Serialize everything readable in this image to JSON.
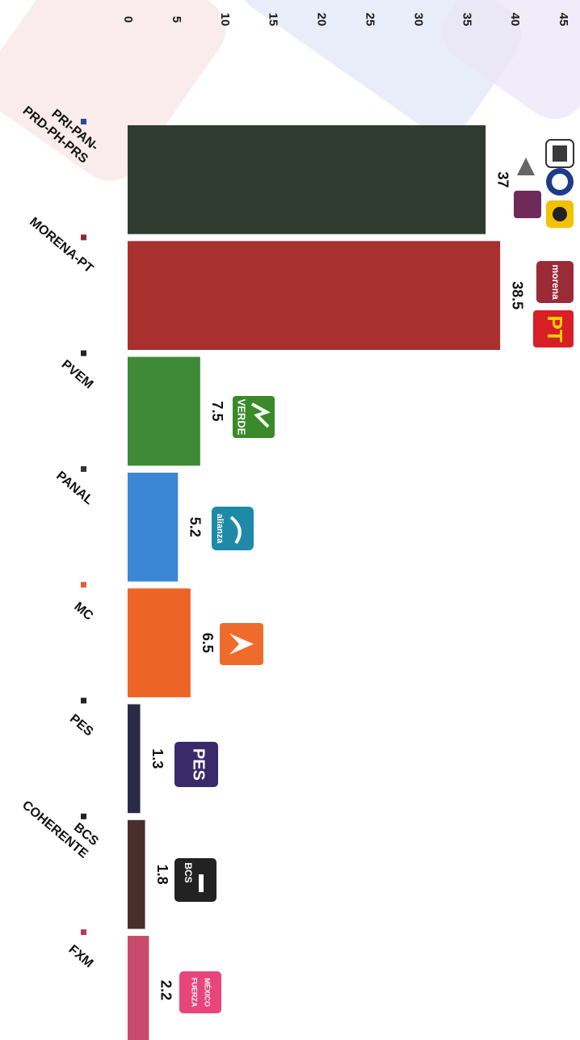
{
  "chart_data": {
    "type": "bar",
    "orientation": "horizontal",
    "categories": [
      "PRI-PAN-PRD-PH-PRS",
      "MORENA-PT",
      "PVEM",
      "PANAL",
      "MC",
      "PES",
      "BCS COHERENTE",
      "FXM"
    ],
    "category_lines": [
      [
        "PRI-PAN-",
        "PRD-PH-PRS"
      ],
      [
        "MORENA-PT"
      ],
      [
        "PVEM"
      ],
      [
        "PANAL"
      ],
      [
        "MC"
      ],
      [
        "PES"
      ],
      [
        "BCS",
        "COHERENTE"
      ],
      [
        "FXM"
      ]
    ],
    "values": [
      37,
      38.5,
      7.5,
      5.2,
      6.5,
      1.3,
      1.8,
      2.2
    ],
    "value_labels": [
      "37",
      "38.5",
      "7.5",
      "5.2",
      "6.5",
      "1.3",
      "1.8",
      "2.2"
    ],
    "colors": [
      "#2f3b2f",
      "#a8302f",
      "#3e8a36",
      "#3c86d6",
      "#ec6426",
      "#2a2a48",
      "#4a2e2c",
      "#c94a6c"
    ],
    "marker_colors": [
      "#2b4a9a",
      "#8a2a35",
      "#222222",
      "#333333",
      "#e0603a",
      "#222222",
      "#222222",
      "#b23a5a"
    ],
    "axis_ticks": [
      "0",
      "5",
      "10",
      "15",
      "20",
      "25",
      "30",
      "35",
      "40",
      "45"
    ],
    "xlim": [
      0,
      45
    ],
    "title": "",
    "xlabel": "",
    "ylabel": "",
    "grid": false,
    "legend": "none",
    "rotated": "chart drawn rotated 90° clockwise"
  },
  "logos": {
    "pt": "PT",
    "morena": "morena",
    "verde": "VERDE",
    "alianza": "alianza",
    "pes": "PES",
    "bcs": "BCS",
    "fxm_line1": "FUERZA",
    "fxm_line2": "MÉXICO"
  }
}
